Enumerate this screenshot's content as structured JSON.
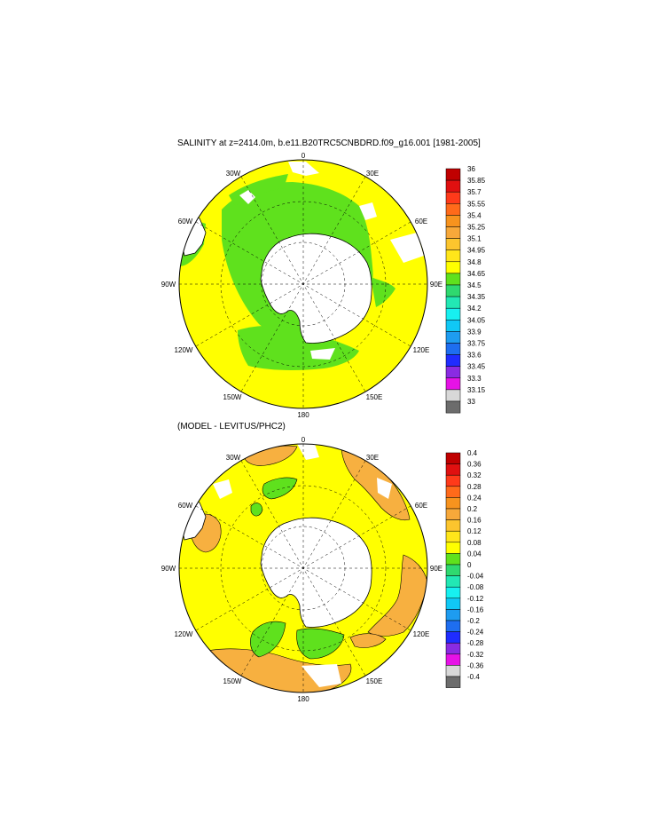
{
  "panels": [
    {
      "title": "SALINITY at z=2414.0m, b.e11.B20TRC5CNBDRD.f09_g16.001 [1981-2005]",
      "lon_labels": {
        "n": "0",
        "ne": "30E",
        "e1": "60E",
        "e": "90E",
        "se1": "120E",
        "se": "150E",
        "s": "180",
        "sw": "150W",
        "w1": "120W",
        "w": "90W",
        "nw1": "60W",
        "nw": "30W"
      },
      "colorbar": {
        "labels": [
          "36",
          "35.85",
          "35.7",
          "35.55",
          "35.4",
          "35.25",
          "35.1",
          "34.95",
          "34.8",
          "34.65",
          "34.5",
          "34.35",
          "34.2",
          "34.05",
          "33.9",
          "33.75",
          "33.6",
          "33.45",
          "33.3",
          "33.15",
          "33"
        ],
        "colors": [
          "#c00000",
          "#e01010",
          "#ff3a1a",
          "#ff6a1a",
          "#f7931e",
          "#f7a83a",
          "#fcc52e",
          "#ffe61a",
          "#ffff00",
          "#5fe11d",
          "#2fd96f",
          "#22e8b4",
          "#17f0f0",
          "#10c8f5",
          "#1e9cf0",
          "#1e6ef0",
          "#1f2cff",
          "#8a2be2",
          "#e612e6",
          "#d8d8d8",
          "#6c6c6c"
        ]
      }
    },
    {
      "title": "(MODEL - LEVITUS/PHC2)",
      "lon_labels": {
        "n": "0",
        "ne": "30E",
        "e1": "60E",
        "e": "90E",
        "se1": "120E",
        "se": "150E",
        "s": "180",
        "sw": "150W",
        "w1": "120W",
        "w": "90W",
        "nw1": "60W",
        "nw": "30W"
      },
      "colorbar": {
        "labels": [
          "0.4",
          "0.36",
          "0.32",
          "0.28",
          "0.24",
          "0.2",
          "0.16",
          "0.12",
          "0.08",
          "0.04",
          "0",
          "-0.04",
          "-0.08",
          "-0.12",
          "-0.16",
          "-0.2",
          "-0.24",
          "-0.28",
          "-0.32",
          "-0.36",
          "-0.4"
        ],
        "colors": [
          "#c00000",
          "#e01010",
          "#ff3a1a",
          "#ff6a1a",
          "#f7931e",
          "#f7a83a",
          "#fcc52e",
          "#ffe61a",
          "#ffff00",
          "#5fe11d",
          "#2fd96f",
          "#22e8b4",
          "#17f0f0",
          "#10c8f5",
          "#1e9cf0",
          "#1e6ef0",
          "#1f2cff",
          "#8a2be2",
          "#e612e6",
          "#d8d8d8",
          "#6c6c6c"
        ]
      }
    }
  ],
  "map_colors": {
    "ocean_main": "#ffff00",
    "ocean_green": "#5fe11d",
    "ocean_orange": "#f7b040",
    "land": "#ffffff",
    "coast": "#000000"
  }
}
